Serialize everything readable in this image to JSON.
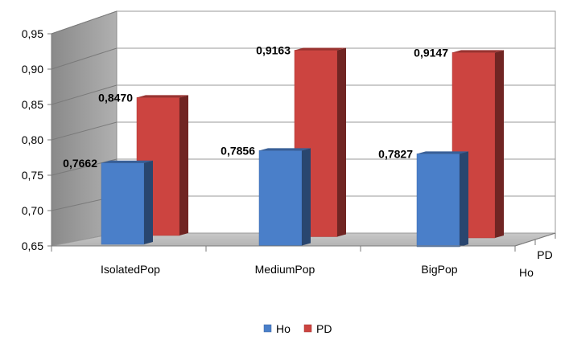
{
  "chart_data": {
    "type": "bar",
    "categories": [
      "IsolatedPop",
      "MediumPop",
      "BigPop"
    ],
    "series": [
      {
        "name": "Ho",
        "values": [
          0.7662,
          0.7856,
          0.7827
        ],
        "labels": [
          "0,7662",
          "0,7856",
          "0,7827"
        ],
        "color": "#4a7fc9"
      },
      {
        "name": "PD",
        "values": [
          0.847,
          0.9163,
          0.9147
        ],
        "labels": [
          "0,8470",
          "0,9163",
          "0,9147"
        ],
        "color": "#cc4440"
      }
    ],
    "depth_labels": [
      "Ho",
      "PD"
    ],
    "ylim": [
      0.65,
      0.95
    ],
    "yticks": [
      "0,65",
      "0,70",
      "0,75",
      "0,80",
      "0,85",
      "0,90",
      "0,95"
    ],
    "grid": true,
    "legend": "bottom",
    "style": "3d-column"
  }
}
